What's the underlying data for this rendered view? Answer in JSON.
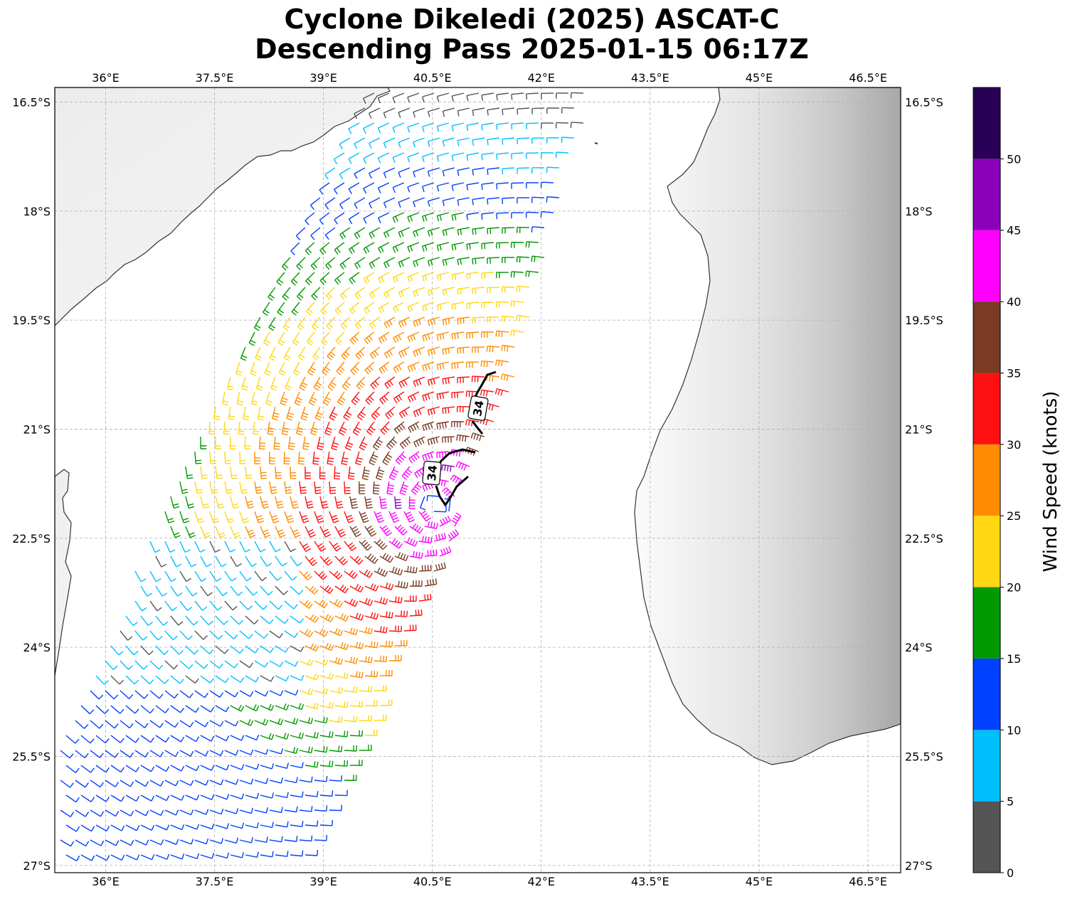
{
  "title": {
    "line1": "Cyclone Dikeledi (2025) ASCAT-C",
    "line2": "Descending Pass 2025-01-15 06:17Z"
  },
  "map": {
    "lon_range": [
      35.3,
      46.95
    ],
    "lat_range": [
      -27.1,
      -16.3
    ],
    "lon_ticks": [
      {
        "value": 36,
        "label": "36°E"
      },
      {
        "value": 37.5,
        "label": "37.5°E"
      },
      {
        "value": 39,
        "label": "39°E"
      },
      {
        "value": 40.5,
        "label": "40.5°E"
      },
      {
        "value": 42,
        "label": "42°E"
      },
      {
        "value": 43.5,
        "label": "43.5°E"
      },
      {
        "value": 45,
        "label": "45°E"
      },
      {
        "value": 46.5,
        "label": "46.5°E"
      }
    ],
    "lat_ticks": [
      {
        "value": -16.5,
        "label": "16.5°S"
      },
      {
        "value": -18,
        "label": "18°S"
      },
      {
        "value": -19.5,
        "label": "19.5°S"
      },
      {
        "value": -21,
        "label": "21°S"
      },
      {
        "value": -22.5,
        "label": "22.5°S"
      },
      {
        "value": -24,
        "label": "24°S"
      },
      {
        "value": -25.5,
        "label": "25.5°S"
      },
      {
        "value": -27,
        "label": "27°S"
      }
    ],
    "gridlines": true,
    "storm_center": {
      "lon": 40.55,
      "lat": -22.05
    },
    "contour_34kt_label": "34",
    "coastline_color": "#333333",
    "land_shading": "grayscale elevation",
    "barb_count_estimate": "several hundred wind barbs in ASCAT swath"
  },
  "colorbar": {
    "title": "Wind Speed (knots)",
    "bins": [
      {
        "from": 0,
        "to": 5,
        "color": "#555555"
      },
      {
        "from": 5,
        "to": 10,
        "color": "#00bfff"
      },
      {
        "from": 10,
        "to": 15,
        "color": "#0040ff"
      },
      {
        "from": 15,
        "to": 20,
        "color": "#009900"
      },
      {
        "from": 20,
        "to": 25,
        "color": "#ffd712"
      },
      {
        "from": 25,
        "to": 30,
        "color": "#ff8c00"
      },
      {
        "from": 30,
        "to": 35,
        "color": "#ff1010"
      },
      {
        "from": 35,
        "to": 40,
        "color": "#7a3b22"
      },
      {
        "from": 40,
        "to": 45,
        "color": "#ff00ff"
      },
      {
        "from": 45,
        "to": 50,
        "color": "#8b00b8"
      },
      {
        "from": 50,
        "to": 55,
        "color": "#2a0057"
      }
    ],
    "tick_labels": [
      "0",
      "5",
      "10",
      "15",
      "20",
      "25",
      "30",
      "35",
      "40",
      "45",
      "50"
    ]
  }
}
